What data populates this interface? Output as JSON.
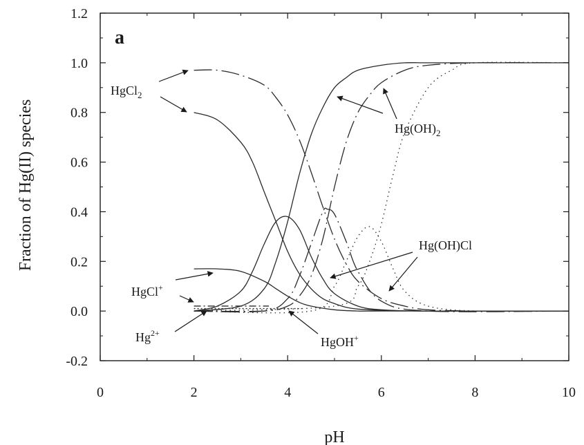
{
  "chart_data": {
    "type": "line",
    "panel_label": "a",
    "xlabel": "pH",
    "ylabel": "Fraction of Hg(II) species",
    "xlim": [
      0,
      10
    ],
    "ylim": [
      -0.2,
      1.2
    ],
    "x_ticks": [
      0,
      2,
      4,
      6,
      8,
      10
    ],
    "y_ticks": [
      -0.2,
      0.0,
      0.2,
      0.4,
      0.6,
      0.8,
      1.0,
      1.2
    ],
    "x_tick_labels": [
      "0",
      "2",
      "4",
      "6",
      "8",
      "10"
    ],
    "y_tick_labels": [
      "-0.2",
      "0.0",
      "0.2",
      "0.4",
      "0.6",
      "0.8",
      "1.0",
      "1.2"
    ],
    "grid": false,
    "series": [
      {
        "label_id": "hgcl2",
        "style": "solid",
        "x": [
          2.0,
          2.5,
          3.0,
          3.25,
          3.5,
          3.75,
          4.0,
          4.25,
          4.5,
          4.75,
          5.0,
          5.25,
          5.5,
          6.0,
          7.0,
          8.0,
          10.0
        ],
        "values": [
          0.8,
          0.77,
          0.68,
          0.6,
          0.48,
          0.36,
          0.24,
          0.15,
          0.09,
          0.05,
          0.03,
          0.015,
          0.008,
          0.003,
          0.0,
          0.0,
          0.0
        ]
      },
      {
        "label_id": "hgoh2",
        "style": "solid",
        "x": [
          2.0,
          3.0,
          3.5,
          3.75,
          4.0,
          4.25,
          4.5,
          4.75,
          5.0,
          5.25,
          5.5,
          6.0,
          6.5,
          7.0,
          8.0,
          10.0
        ],
        "values": [
          0.0,
          0.02,
          0.09,
          0.2,
          0.36,
          0.55,
          0.71,
          0.82,
          0.9,
          0.94,
          0.97,
          0.99,
          1.0,
          1.0,
          1.0,
          1.0
        ]
      },
      {
        "label_id": "hgohcl",
        "style": "solid",
        "x": [
          2.0,
          2.5,
          3.0,
          3.25,
          3.5,
          3.75,
          4.0,
          4.25,
          4.5,
          4.75,
          5.0,
          5.5,
          6.0,
          7.0,
          10.0
        ],
        "values": [
          0.0,
          0.02,
          0.08,
          0.16,
          0.27,
          0.36,
          0.38,
          0.33,
          0.22,
          0.13,
          0.07,
          0.02,
          0.005,
          0.0,
          0.0
        ]
      },
      {
        "label_id": "hgcl",
        "style": "solid",
        "x": [
          2.0,
          2.5,
          3.0,
          3.5,
          3.75,
          4.0,
          4.25,
          4.5,
          5.0,
          5.5,
          6.0,
          10.0
        ],
        "values": [
          0.17,
          0.17,
          0.16,
          0.12,
          0.09,
          0.06,
          0.035,
          0.02,
          0.005,
          0.0,
          0.0,
          0.0
        ]
      },
      {
        "label_id": "hgcl2",
        "style": "dash-dot",
        "x": [
          2.0,
          2.5,
          3.0,
          3.5,
          3.75,
          4.0,
          4.25,
          4.5,
          4.75,
          5.0,
          5.25,
          5.5,
          6.0,
          6.5,
          7.0,
          8.0,
          10.0
        ],
        "values": [
          0.97,
          0.97,
          0.95,
          0.91,
          0.86,
          0.79,
          0.69,
          0.56,
          0.42,
          0.29,
          0.19,
          0.12,
          0.05,
          0.02,
          0.005,
          0.0,
          0.0
        ]
      },
      {
        "label_id": "hgoh2",
        "style": "dash-dot",
        "x": [
          2.0,
          3.5,
          4.0,
          4.25,
          4.5,
          4.75,
          5.0,
          5.25,
          5.5,
          5.75,
          6.0,
          6.5,
          7.0,
          8.0,
          10.0
        ],
        "values": [
          0.0,
          0.0,
          0.02,
          0.06,
          0.14,
          0.29,
          0.5,
          0.68,
          0.8,
          0.87,
          0.92,
          0.97,
          0.99,
          1.0,
          1.0
        ]
      },
      {
        "label_id": "hgohcl",
        "style": "dash-dot",
        "x": [
          2.0,
          3.5,
          4.0,
          4.25,
          4.5,
          4.75,
          4.85,
          5.0,
          5.25,
          5.5,
          6.0,
          7.0,
          10.0
        ],
        "values": [
          0.0,
          0.0,
          0.05,
          0.14,
          0.27,
          0.4,
          0.41,
          0.39,
          0.28,
          0.16,
          0.04,
          0.0,
          0.0
        ]
      },
      {
        "label_id": "hgoh2",
        "style": "dotted",
        "x": [
          2.0,
          5.0,
          5.5,
          5.75,
          6.0,
          6.25,
          6.5,
          7.0,
          7.5,
          8.0,
          10.0
        ],
        "values": [
          0.0,
          0.02,
          0.1,
          0.2,
          0.35,
          0.55,
          0.72,
          0.9,
          0.97,
          1.0,
          1.0
        ]
      },
      {
        "label_id": "hgohcl",
        "style": "dotted",
        "x": [
          2.0,
          4.5,
          5.0,
          5.25,
          5.5,
          5.75,
          6.0,
          6.25,
          6.5,
          7.0,
          8.0,
          10.0
        ],
        "values": [
          0.0,
          0.0,
          0.1,
          0.2,
          0.3,
          0.34,
          0.28,
          0.17,
          0.08,
          0.02,
          0.0,
          0.0
        ]
      }
    ],
    "annotations": [
      {
        "id": "hgcl2",
        "label": "HgCl",
        "subscript": "2"
      },
      {
        "id": "hgoh2",
        "label": "Hg(OH)",
        "subscript": "2"
      },
      {
        "id": "hgohcl",
        "label": "Hg(OH)Cl",
        "superscript": ""
      },
      {
        "id": "hgcl",
        "label": "HgCl",
        "superscript": "+"
      },
      {
        "id": "hg2",
        "label": "Hg",
        "superscript": "2+"
      },
      {
        "id": "hgoh",
        "label": "HgOH",
        "superscript": "+"
      }
    ]
  }
}
